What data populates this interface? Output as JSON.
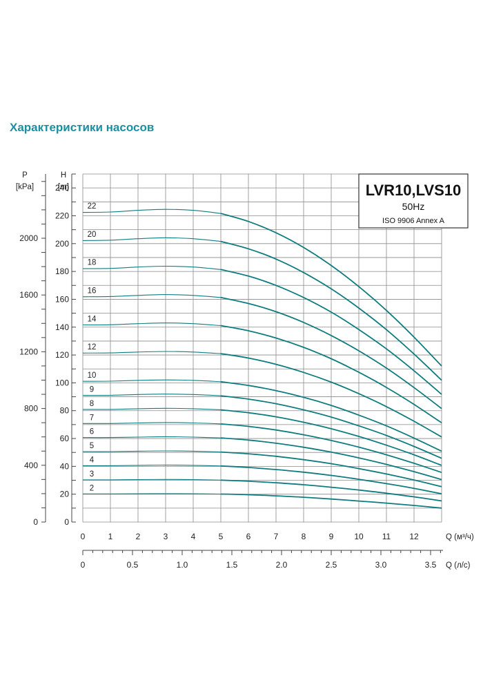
{
  "page_title": "Характеристики насосов",
  "colors": {
    "title": "#1b8fa0",
    "curve": "#0e7c7f",
    "grid": "#8a8a8a"
  },
  "chart_data": {
    "type": "line",
    "model": "LVR10,LVS10",
    "frequency": "50Hz",
    "standard": "ISO 9906 Annex A",
    "x": [
      0,
      1,
      2,
      3,
      4,
      5,
      6,
      7,
      8,
      9,
      10,
      11,
      12,
      13
    ],
    "x_ticks": [
      "0",
      "1",
      "2",
      "3",
      "4",
      "5",
      "6",
      "7",
      "8",
      "9",
      "10",
      "11",
      "12"
    ],
    "xlabel": "Q (м³/ч)",
    "xlim": [
      0,
      13
    ],
    "x2_ticks": [
      "0",
      "0.5",
      "1.0",
      "1.5",
      "2.0",
      "2.5",
      "3.0",
      "3.5"
    ],
    "x2_values": [
      0,
      0.5,
      1.0,
      1.5,
      2.0,
      2.5,
      3.0,
      3.5
    ],
    "x2label": "Q (л/с)",
    "y_ticks": [
      "0",
      "20",
      "40",
      "60",
      "80",
      "100",
      "120",
      "140",
      "160",
      "180",
      "200",
      "220",
      "240"
    ],
    "ylabel_symbol": "H",
    "ylabel_unit": "[m]",
    "ylim": [
      0,
      250
    ],
    "y2_ticks": [
      "0",
      "400",
      "800",
      "1200",
      "1600",
      "2000"
    ],
    "y2_values": [
      0,
      400,
      800,
      1200,
      1600,
      2000
    ],
    "y2label_symbol": "P",
    "y2label_unit": "[kPa]",
    "operating_range_start": 5,
    "grid": true,
    "series": [
      {
        "name": "2",
        "values": [
          20.2,
          20.2,
          20.3,
          20.4,
          20.3,
          20.1,
          19.6,
          18.8,
          17.8,
          16.5,
          15.1,
          13.6,
          11.9,
          10.0
        ]
      },
      {
        "name": "3",
        "values": [
          30.3,
          30.3,
          30.5,
          30.6,
          30.5,
          30.1,
          29.3,
          28.2,
          26.8,
          25.0,
          23.0,
          20.7,
          18.1,
          15.2
        ]
      },
      {
        "name": "4",
        "values": [
          40.5,
          40.5,
          40.7,
          40.9,
          40.7,
          40.3,
          39.2,
          37.7,
          35.8,
          33.5,
          30.7,
          27.6,
          24.2,
          20.3
        ]
      },
      {
        "name": "5",
        "values": [
          50.6,
          50.6,
          50.9,
          51.1,
          50.9,
          50.3,
          49.0,
          47.2,
          44.8,
          41.9,
          38.4,
          34.5,
          30.2,
          25.4
        ]
      },
      {
        "name": "6",
        "values": [
          60.7,
          60.7,
          61.0,
          61.3,
          61.0,
          60.4,
          58.9,
          56.6,
          53.7,
          50.2,
          46.1,
          41.4,
          36.2,
          30.5
        ]
      },
      {
        "name": "7",
        "values": [
          70.8,
          70.8,
          71.2,
          71.5,
          71.2,
          70.5,
          68.7,
          66.1,
          62.7,
          58.6,
          53.8,
          48.3,
          42.2,
          35.6
        ]
      },
      {
        "name": "8",
        "values": [
          80.9,
          80.9,
          81.4,
          81.7,
          81.4,
          80.6,
          78.5,
          75.6,
          71.7,
          67.0,
          61.5,
          55.2,
          48.3,
          40.7
        ]
      },
      {
        "name": "9",
        "values": [
          91.0,
          91.0,
          91.6,
          91.9,
          91.6,
          90.7,
          88.3,
          85.0,
          80.6,
          75.4,
          69.1,
          62.2,
          54.3,
          45.8
        ]
      },
      {
        "name": "10",
        "values": [
          101.1,
          101.2,
          101.8,
          102.1,
          101.8,
          100.8,
          98.1,
          94.4,
          89.6,
          83.8,
          76.8,
          69.1,
          60.3,
          50.9
        ]
      },
      {
        "name": "12",
        "values": [
          121.4,
          121.5,
          122.1,
          122.5,
          122.1,
          121.0,
          117.8,
          113.3,
          107.5,
          100.5,
          92.2,
          82.9,
          72.4,
          61.1
        ]
      },
      {
        "name": "14",
        "values": [
          141.6,
          141.7,
          142.5,
          143.0,
          142.5,
          141.1,
          137.4,
          132.2,
          125.5,
          117.3,
          107.6,
          96.7,
          84.5,
          71.3
        ]
      },
      {
        "name": "16",
        "values": [
          161.8,
          162.0,
          162.8,
          163.4,
          162.8,
          161.3,
          157.0,
          151.1,
          143.4,
          134.0,
          123.0,
          110.6,
          96.6,
          81.5
        ]
      },
      {
        "name": "18",
        "values": [
          182.0,
          182.2,
          183.2,
          183.8,
          183.2,
          181.4,
          176.7,
          170.0,
          161.3,
          150.8,
          138.3,
          124.4,
          108.7,
          91.7
        ]
      },
      {
        "name": "20",
        "values": [
          202.2,
          202.5,
          203.5,
          204.2,
          203.5,
          201.6,
          196.3,
          188.9,
          179.2,
          167.5,
          153.7,
          138.2,
          120.7,
          101.9
        ]
      },
      {
        "name": "22",
        "values": [
          222.4,
          222.7,
          223.9,
          224.6,
          223.9,
          221.7,
          215.9,
          207.8,
          197.2,
          184.3,
          169.1,
          152.0,
          132.8,
          112.1
        ]
      }
    ]
  }
}
